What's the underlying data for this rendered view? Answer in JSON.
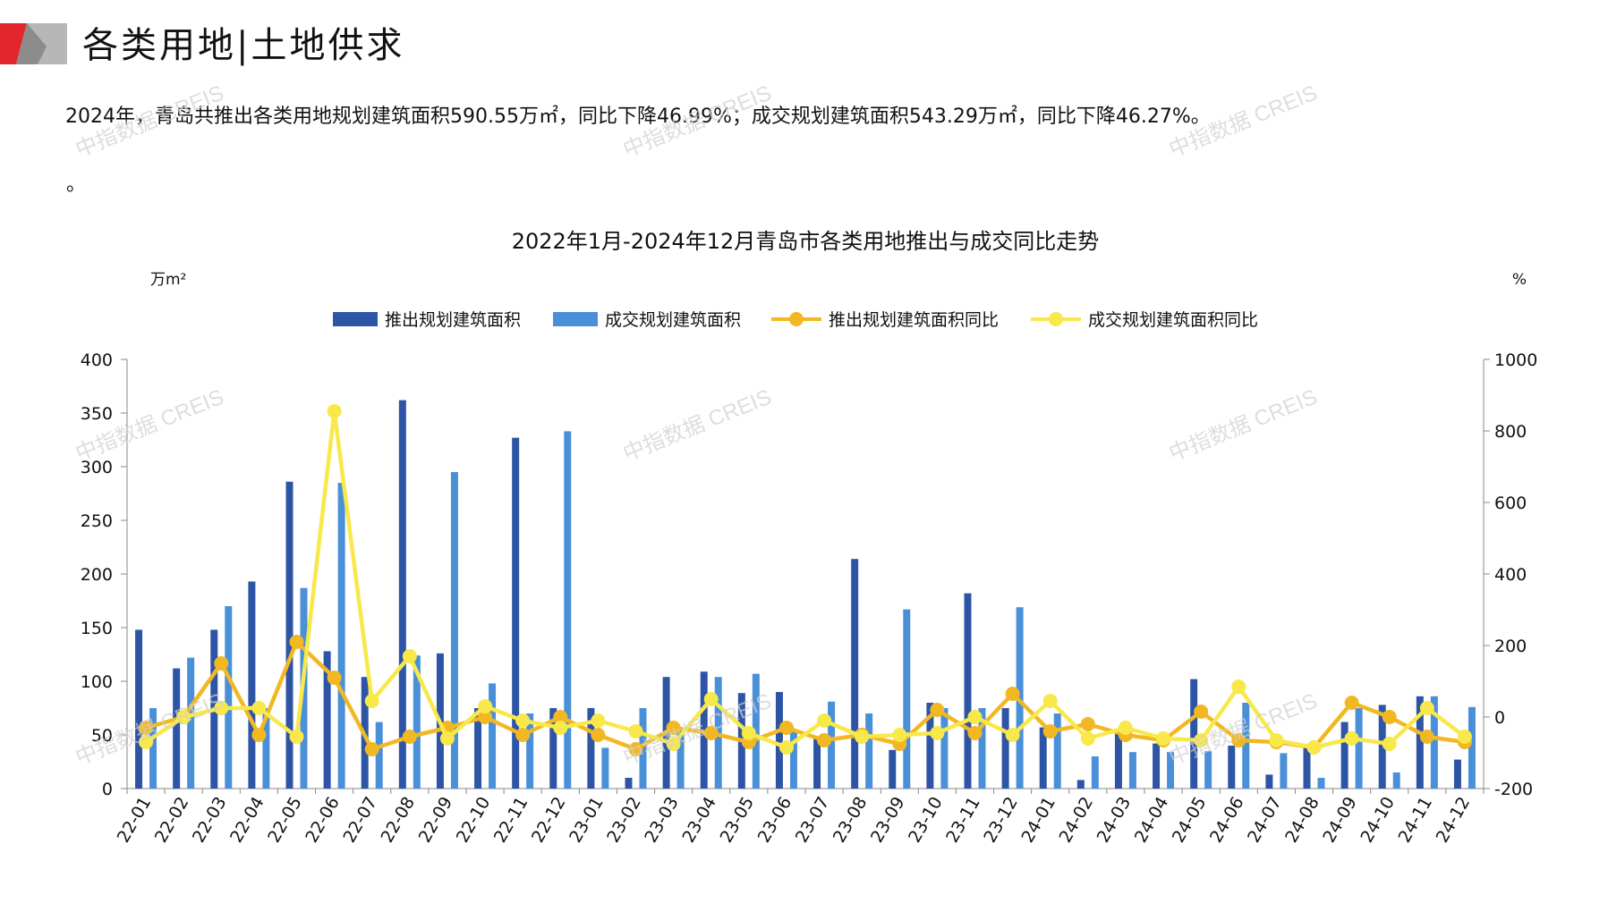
{
  "header": {
    "title": "各类用地|土地供求",
    "summary": "2024年，青岛共推出各类用地规划建筑面积590.55万㎡，同比下降46.99%；成交规划建筑面积543.29万㎡，同比下降46.27%。",
    "summary_tail": "。"
  },
  "watermark_text": "中指数据 CREIS",
  "colors": {
    "supply_bar": "#2e55a5",
    "deal_bar": "#4a90d9",
    "supply_yoy": "#f2b823",
    "deal_yoy": "#f8e84a",
    "brand_red": "#e3262b"
  },
  "chart_data": {
    "type": "bar",
    "title": "2022年1月-2024年12月青岛市各类用地推出与成交同比走势",
    "y_left_unit": "万m²",
    "y_right_unit": "%",
    "ylim_left": [
      0,
      400
    ],
    "ylim_right": [
      -200,
      1000
    ],
    "y_left_ticks": [
      "0",
      "50",
      "100",
      "150",
      "200",
      "250",
      "300",
      "350",
      "400"
    ],
    "y_right_ticks": [
      "-200",
      "0",
      "200",
      "400",
      "600",
      "800",
      "1000"
    ],
    "legend_position": "top",
    "categories": [
      "22-01",
      "22-02",
      "22-03",
      "22-04",
      "22-05",
      "22-06",
      "22-07",
      "22-08",
      "22-09",
      "22-10",
      "22-11",
      "22-12",
      "23-01",
      "23-02",
      "23-03",
      "23-04",
      "23-05",
      "23-06",
      "23-07",
      "23-08",
      "23-09",
      "23-10",
      "23-11",
      "23-12",
      "24-01",
      "24-02",
      "24-03",
      "24-04",
      "24-05",
      "24-06",
      "24-07",
      "24-08",
      "24-09",
      "24-10",
      "24-11",
      "24-12"
    ],
    "series": [
      {
        "name": "推出规划建筑面积",
        "type": "bar",
        "axis": "left",
        "values": [
          148,
          112,
          148,
          193,
          286,
          128,
          104,
          362,
          126,
          75,
          327,
          75,
          75,
          10,
          104,
          109,
          89,
          90,
          47,
          214,
          36,
          80,
          182,
          75,
          57,
          8,
          53,
          42,
          102,
          40,
          13,
          40,
          62,
          78,
          86,
          27
        ]
      },
      {
        "name": "成交规划建筑面积",
        "type": "bar",
        "axis": "left",
        "values": [
          75,
          122,
          170,
          75,
          187,
          285,
          62,
          124,
          295,
          98,
          70,
          333,
          38,
          75,
          56,
          104,
          107,
          54,
          81,
          70,
          167,
          75,
          75,
          169,
          70,
          30,
          34,
          34,
          35,
          80,
          33,
          10,
          75,
          15,
          86,
          76
        ]
      },
      {
        "name": "推出规划建筑面积同比",
        "type": "line",
        "axis": "right",
        "values": [
          -30,
          0,
          150,
          -50,
          210,
          110,
          -90,
          -55,
          -30,
          0,
          -50,
          0,
          -50,
          -90,
          -30,
          -45,
          -70,
          -30,
          -65,
          -50,
          -75,
          20,
          -45,
          65,
          -40,
          -20,
          -50,
          -65,
          15,
          -65,
          -70,
          -85,
          40,
          0,
          -55,
          -70
        ]
      },
      {
        "name": "成交规划建筑面积同比",
        "type": "line",
        "axis": "right",
        "values": [
          -70,
          0,
          25,
          25,
          -55,
          855,
          45,
          170,
          -60,
          30,
          -10,
          -30,
          -10,
          -40,
          -75,
          50,
          -45,
          -85,
          -10,
          -55,
          -50,
          -45,
          0,
          -50,
          45,
          -60,
          -30,
          -60,
          -65,
          85,
          -65,
          -85,
          -60,
          -75,
          25,
          -55
        ]
      }
    ]
  }
}
